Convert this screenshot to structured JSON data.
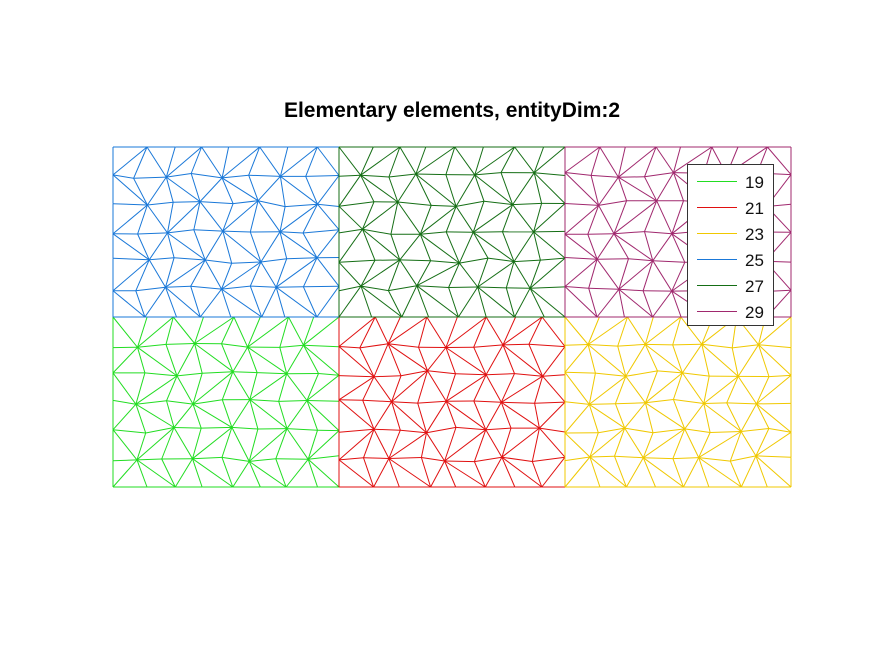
{
  "title": "Elementary elements, entityDim:2",
  "chart_data": {
    "type": "mesh",
    "domain": "2D triangular finite-element mesh made of 6 rectangular surface blocks (3 columns x 2 rows), each colored by its elementary entity tag",
    "blocks": [
      {
        "tag": "19",
        "row": "bottom",
        "col": 1,
        "color": "#22dd22"
      },
      {
        "tag": "21",
        "row": "bottom",
        "col": 2,
        "color": "#e01010"
      },
      {
        "tag": "23",
        "row": "bottom",
        "col": 3,
        "color": "#f0c800"
      },
      {
        "tag": "25",
        "row": "top",
        "col": 1,
        "color": "#1a78d8"
      },
      {
        "tag": "27",
        "row": "top",
        "col": 2,
        "color": "#156e15"
      },
      {
        "tag": "29",
        "row": "top",
        "col": 3,
        "color": "#a0286e"
      }
    ],
    "legend": {
      "placement": "top-right"
    }
  },
  "legend": {
    "entries": [
      {
        "label": "19",
        "color": "#22dd22"
      },
      {
        "label": "21",
        "color": "#e01010"
      },
      {
        "label": "23",
        "color": "#f0c800"
      },
      {
        "label": "25",
        "color": "#1a78d8"
      },
      {
        "label": "27",
        "color": "#156e15"
      },
      {
        "label": "29",
        "color": "#a0286e"
      }
    ]
  }
}
